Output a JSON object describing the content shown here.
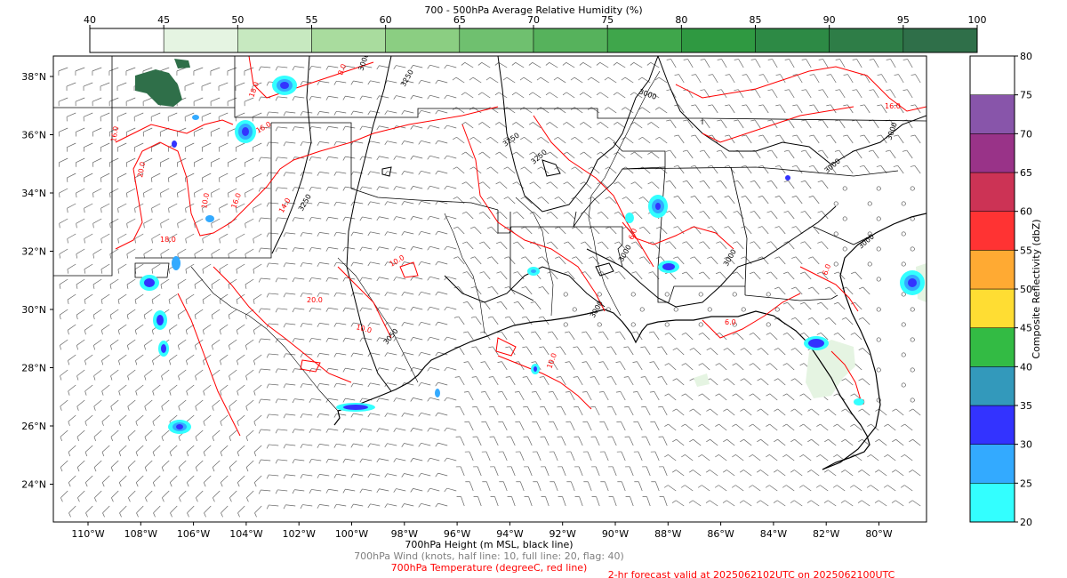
{
  "rh_colorbar": {
    "title": "700 - 500hPa Average Relative Humidity (%)",
    "ticks": [
      "40",
      "45",
      "50",
      "55",
      "60",
      "65",
      "70",
      "75",
      "80",
      "85",
      "90",
      "95",
      "100"
    ],
    "colors": [
      "#ffffff",
      "#e5f4e2",
      "#c7e9c0",
      "#a9dc9e",
      "#8bce82",
      "#6fc06f",
      "#56b25c",
      "#3fa64b",
      "#2f9941",
      "#2d8a45",
      "#2e7d47",
      "#2f6f49"
    ]
  },
  "reflectivity_colorbar": {
    "title": "Composite Reflectivity (dbZ)",
    "ticks": [
      "20",
      "25",
      "30",
      "35",
      "40",
      "45",
      "50",
      "55",
      "60",
      "65",
      "70",
      "75",
      "80"
    ],
    "colors": [
      "#33ffff",
      "#33aaff",
      "#3333ff",
      "#3399bb",
      "#33bb44",
      "#ffdd33",
      "#ffaa33",
      "#ff3333",
      "#cc3355",
      "#993388",
      "#8855aa",
      "#ffffff"
    ]
  },
  "map": {
    "lat_labels": [
      "38°N",
      "36°N",
      "34°N",
      "32°N",
      "30°N",
      "28°N",
      "26°N",
      "24°N"
    ],
    "lon_labels": [
      "110°W",
      "108°W",
      "106°W",
      "104°W",
      "102°W",
      "100°W",
      "98°W",
      "96°W",
      "94°W",
      "92°W",
      "90°W",
      "88°W",
      "86°W",
      "84°W",
      "82°W",
      "80°W"
    ],
    "height_contour_labels": [
      "3000",
      "3250",
      "3250",
      "3250",
      "3000",
      "3000",
      "3000",
      "3050",
      "3000",
      "3000",
      "3000",
      "3250",
      "3000"
    ],
    "temp_contour_labels": [
      "18.0",
      "16.0",
      "20.0",
      "16.0",
      "14.0",
      "18.0",
      "20.0",
      "10.0",
      "6.0",
      "16.0",
      "6.0",
      "6.0",
      "10.0",
      "6.0",
      "8.0",
      "16.0",
      "10.0",
      "10.0"
    ]
  },
  "captions": {
    "height": "700hPa Height (m MSL, black line)",
    "wind": "700hPa Wind (knots, half line: 10, full line: 20, flag: 40)",
    "temperature": "700hPa Temperature (degreeC, red line)",
    "valid": "2-hr forecast valid at 2025062102UTC on 2025062100UTC"
  },
  "caption_colors": {
    "height": "#000000",
    "wind": "#808080",
    "temperature": "#ff0000",
    "valid": "#ff0000"
  }
}
